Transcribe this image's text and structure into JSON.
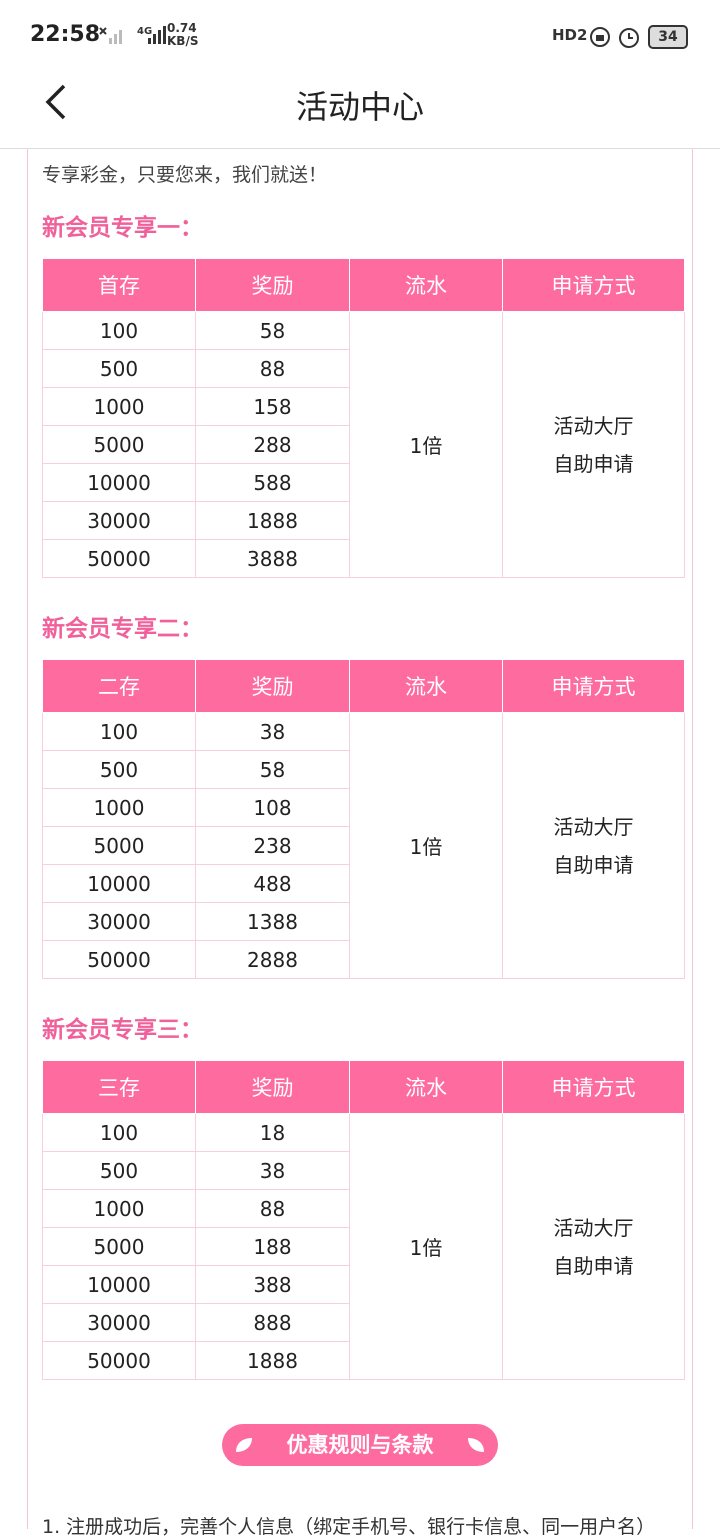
{
  "status_bar": {
    "time": "22:58",
    "network": "4G",
    "speed": "0.74",
    "speed_unit": "KB/S",
    "hd": "HD2",
    "battery": "34"
  },
  "header": {
    "title": "活动中心"
  },
  "intro": "专享彩金，只要您来，我们就送！",
  "sections": [
    {
      "title": "新会员专享一：",
      "headers": [
        "首存",
        "奖励",
        "流水",
        "申请方式"
      ],
      "rows": [
        [
          100,
          58
        ],
        [
          500,
          88
        ],
        [
          1000,
          158
        ],
        [
          5000,
          288
        ],
        [
          10000,
          588
        ],
        [
          30000,
          1888
        ],
        [
          50000,
          3888
        ]
      ],
      "wager": "1倍",
      "apply": [
        "活动大厅",
        "自助申请"
      ]
    },
    {
      "title": "新会员专享二：",
      "headers": [
        "二存",
        "奖励",
        "流水",
        "申请方式"
      ],
      "rows": [
        [
          100,
          38
        ],
        [
          500,
          58
        ],
        [
          1000,
          108
        ],
        [
          5000,
          238
        ],
        [
          10000,
          488
        ],
        [
          30000,
          1388
        ],
        [
          50000,
          2888
        ]
      ],
      "wager": "1倍",
      "apply": [
        "活动大厅",
        "自助申请"
      ]
    },
    {
      "title": "新会员专享三：",
      "headers": [
        "三存",
        "奖励",
        "流水",
        "申请方式"
      ],
      "rows": [
        [
          100,
          18
        ],
        [
          500,
          38
        ],
        [
          1000,
          88
        ],
        [
          5000,
          188
        ],
        [
          10000,
          388
        ],
        [
          30000,
          888
        ],
        [
          50000,
          1888
        ]
      ],
      "wager": "1倍",
      "apply": [
        "活动大厅",
        "自助申请"
      ]
    }
  ],
  "rules_button": "优惠规则与条款",
  "rules": [
    "1. 注册成功后，完善个人信息（绑定手机号、银行卡信息、同一用户名）"
  ]
}
